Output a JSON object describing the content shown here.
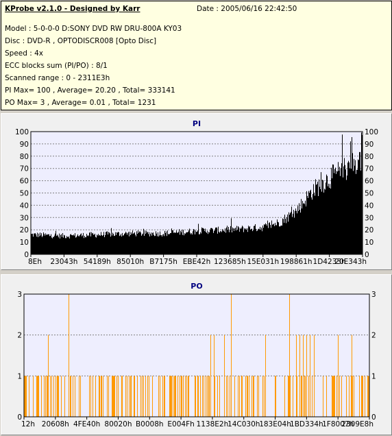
{
  "header": {
    "title": "KProbe v2.1.0 - Designed by Karr",
    "date": "Date : 2005/06/16 22:42:50",
    "model": "Model : 5-0-0-0 D:SONY    DVD RW DRU-800A  KY03",
    "disc": "Disc : DVD-R , OPTODISCR008 [Opto Disc]",
    "speed": "Speed : 4x",
    "ecc": "ECC blocks sum (PI/PO) : 8/1",
    "range": "Scanned range : 0 - 2311E3h",
    "pi_stats": "PI Max= 100 , Average= 20.20 , Total= 333141",
    "po_stats": "PO Max= 3 , Average= 0.01 , Total= 1231"
  },
  "colors": {
    "pi_bars": "#000000",
    "po_bars": "#ff9900",
    "plot_bg": "#eeeefe",
    "title": "#000080",
    "gridline": "#808080"
  },
  "chart_data": [
    {
      "type": "bar",
      "title": "PI",
      "ylim": [
        0,
        100
      ],
      "yticks": [
        0,
        10,
        20,
        30,
        40,
        50,
        60,
        70,
        80,
        90,
        100
      ],
      "grid": true,
      "xtick_labels": [
        "8Eh",
        "23043h",
        "54189h",
        "85010h",
        "B7175h",
        "EBE42h",
        "123685h",
        "15E031h",
        "198861h",
        "1D4233h",
        "20E343h"
      ],
      "profile": {
        "x": [
          0,
          0.1,
          0.2,
          0.3,
          0.4,
          0.5,
          0.6,
          0.7,
          0.75,
          0.8,
          0.85,
          0.9,
          0.95,
          1.0
        ],
        "y": [
          16,
          15,
          16,
          17,
          17,
          19,
          20,
          22,
          26,
          35,
          52,
          62,
          70,
          78
        ]
      },
      "max": 100
    },
    {
      "type": "bar",
      "title": "PO",
      "ylim": [
        0,
        3
      ],
      "yticks": [
        0,
        1,
        2,
        3
      ],
      "grid": true,
      "xtick_labels": [
        "12h",
        "20608h",
        "4FE40h",
        "80020h",
        "B0008h",
        "E004Fh",
        "1138E2h",
        "14C030h",
        "183E04h",
        "1BD334h",
        "1F8007h",
        "2309E8h"
      ],
      "values_at_3": [
        0.13,
        0.6,
        0.77
      ],
      "values_at_2": [
        0.07,
        0.54,
        0.55,
        0.58,
        0.7,
        0.79,
        0.8,
        0.81,
        0.82,
        0.83,
        0.84,
        0.91,
        0.95
      ],
      "max": 3,
      "average": 0.01,
      "total": 1231
    }
  ]
}
